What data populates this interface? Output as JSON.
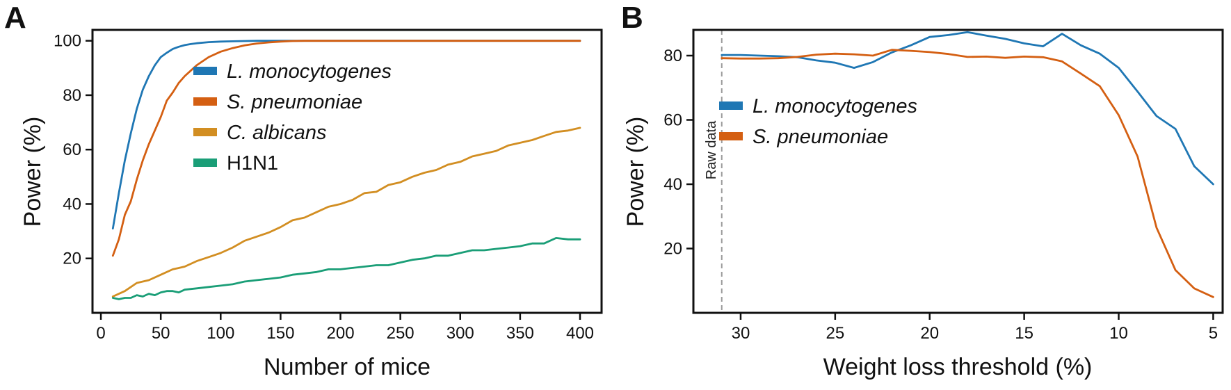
{
  "chart_data": [
    {
      "panel": "A",
      "type": "line",
      "xlabel": "Number of mice",
      "ylabel": "Power (%)",
      "xlim": [
        -7,
        418
      ],
      "ylim": [
        0,
        104
      ],
      "xticks": [
        0,
        50,
        100,
        150,
        200,
        250,
        300,
        350,
        400
      ],
      "yticks": [
        20,
        40,
        60,
        80,
        100
      ],
      "legend_position": "top-center",
      "series": [
        {
          "name": "L. monocytogenes",
          "italic": true,
          "color": "#1f77b4",
          "x": [
            10,
            15,
            20,
            25,
            30,
            35,
            40,
            45,
            50,
            55,
            60,
            65,
            70,
            75,
            80,
            90,
            100,
            110,
            120,
            130,
            140,
            150,
            160,
            170,
            180,
            200,
            250,
            300,
            350,
            400
          ],
          "y": [
            31,
            44,
            56,
            66,
            75,
            82,
            87,
            91,
            94,
            95.6,
            97,
            97.8,
            98.4,
            98.8,
            99.1,
            99.5,
            99.7,
            99.8,
            99.9,
            100,
            100,
            100,
            100,
            100,
            100,
            100,
            100,
            100,
            100,
            100
          ]
        },
        {
          "name": "S. pneumoniae",
          "italic": true,
          "color": "#d45f12",
          "x": [
            10,
            15,
            20,
            25,
            30,
            35,
            40,
            45,
            50,
            55,
            60,
            65,
            70,
            75,
            80,
            90,
            100,
            110,
            120,
            130,
            140,
            150,
            160,
            170,
            180,
            200,
            250,
            300,
            350,
            400
          ],
          "y": [
            21,
            27,
            36,
            41,
            49,
            56,
            62,
            67,
            72,
            78,
            81,
            84.5,
            87,
            89,
            91,
            94,
            96,
            97.3,
            98.3,
            99,
            99.4,
            99.7,
            99.9,
            100,
            100,
            100,
            100,
            100,
            100,
            100
          ]
        },
        {
          "name": "C. albicans",
          "italic": true,
          "color": "#d28e22",
          "x": [
            10,
            20,
            30,
            40,
            50,
            60,
            70,
            80,
            90,
            100,
            110,
            120,
            130,
            140,
            150,
            160,
            170,
            180,
            190,
            200,
            210,
            220,
            230,
            240,
            250,
            260,
            270,
            280,
            290,
            300,
            310,
            320,
            330,
            340,
            350,
            360,
            370,
            380,
            390,
            400
          ],
          "y": [
            6,
            8,
            11,
            12,
            14,
            16,
            17,
            19,
            20.5,
            22,
            24,
            26.5,
            28,
            29.5,
            31.5,
            34,
            35,
            37,
            39,
            40,
            41.5,
            44,
            44.5,
            47,
            48,
            50,
            51.5,
            52.5,
            54.5,
            55.5,
            57.5,
            58.5,
            59.5,
            61.5,
            62.5,
            63.5,
            65,
            66.5,
            67,
            68
          ]
        },
        {
          "name": "H1N1",
          "italic": false,
          "color": "#1a9e77",
          "x": [
            10,
            15,
            20,
            25,
            30,
            35,
            40,
            45,
            50,
            55,
            60,
            65,
            70,
            80,
            90,
            100,
            110,
            120,
            130,
            140,
            150,
            160,
            170,
            180,
            190,
            200,
            210,
            220,
            230,
            240,
            250,
            260,
            270,
            280,
            290,
            300,
            310,
            320,
            330,
            340,
            350,
            360,
            370,
            380,
            390,
            400
          ],
          "y": [
            5.5,
            5,
            5.5,
            5.5,
            6.5,
            6,
            7,
            6.5,
            7.5,
            8,
            8,
            7.5,
            8.5,
            9,
            9.5,
            10,
            10.5,
            11.5,
            12,
            12.5,
            13,
            14,
            14.5,
            15,
            16,
            16,
            16.5,
            17,
            17.5,
            17.5,
            18.5,
            19.5,
            20,
            21,
            21,
            22,
            23,
            23,
            23.5,
            24,
            24.5,
            25.5,
            25.5,
            27.5,
            27,
            27
          ]
        }
      ]
    },
    {
      "panel": "B",
      "type": "line",
      "xlabel": "Weight loss threshold (%)",
      "ylabel": "Power (%)",
      "xlim": [
        32.5,
        4.5
      ],
      "ylim": [
        0,
        88
      ],
      "xticks": [
        30,
        25,
        20,
        15,
        10,
        5
      ],
      "yticks": [
        20,
        40,
        60,
        80
      ],
      "legend_position": "center",
      "annotation": {
        "text": "Raw data",
        "x": 31
      },
      "series": [
        {
          "name": "L. monocytogenes",
          "italic": true,
          "color": "#1f77b4",
          "x": [
            31,
            30,
            29,
            28,
            27,
            26,
            25,
            24,
            23,
            22,
            21,
            20,
            19,
            18,
            17,
            16,
            15,
            14,
            13,
            12,
            11,
            10,
            9,
            8,
            7,
            6,
            5
          ],
          "y": [
            80.2,
            80.2,
            80,
            79.8,
            79.5,
            78.5,
            77.8,
            76.2,
            78,
            81,
            83.2,
            85.8,
            86.4,
            87.3,
            86.2,
            85.2,
            83.8,
            82.9,
            86.8,
            83.2,
            80.6,
            76.2,
            68.8,
            61.2,
            57.2,
            45.6,
            40
          ]
        },
        {
          "name": "S. pneumoniae",
          "italic": true,
          "color": "#d45f12",
          "x": [
            31,
            30,
            29,
            28,
            27,
            26,
            25,
            24,
            23,
            22,
            21,
            20,
            19,
            18,
            17,
            16,
            15,
            14,
            13,
            12,
            11,
            10,
            9,
            8,
            7,
            6,
            5
          ],
          "y": [
            79.2,
            79.1,
            79.1,
            79.2,
            79.6,
            80.3,
            80.6,
            80.4,
            80,
            81.8,
            81.5,
            81.1,
            80.5,
            79.6,
            79.7,
            79.3,
            79.7,
            79.5,
            78.2,
            74.4,
            70.5,
            61.5,
            48.6,
            26.5,
            13.3,
            7.6,
            4.9
          ]
        }
      ]
    }
  ]
}
